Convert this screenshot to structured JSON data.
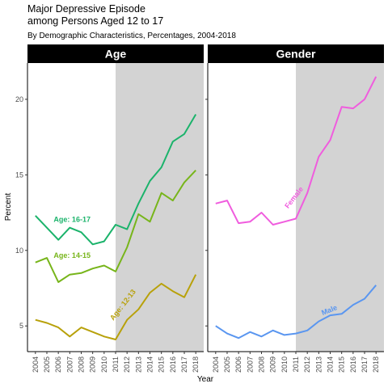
{
  "chart_data": {
    "type": "line",
    "title": "Major Depressive Episode\namong Persons Aged 12 to 17",
    "title_lines": [
      "Major Depressive Episode",
      "among Persons Aged 12 to 17"
    ],
    "subtitle": "By Demographic Characteristics, Percentages, 2004-2018",
    "xlabel": "Year",
    "ylabel": "Percent",
    "ylim": [
      3.3,
      22.4
    ],
    "y_ticks": [
      5,
      10,
      15,
      20
    ],
    "x": [
      2004,
      2005,
      2006,
      2007,
      2008,
      2009,
      2010,
      2011,
      2012,
      2013,
      2014,
      2015,
      2016,
      2017,
      2018
    ],
    "shaded_from_year": 2011,
    "shaded_color": "#d3d3d3",
    "grid": false,
    "legend": "none",
    "panels": [
      {
        "title": "Age",
        "series": [
          {
            "name": "Age: 16-17",
            "color": "#1bb36b",
            "values": [
              12.3,
              11.5,
              10.7,
              11.5,
              11.2,
              10.4,
              10.6,
              11.7,
              11.4,
              13.1,
              14.6,
              15.5,
              17.2,
              17.7,
              19.0
            ],
            "label_x": 2007.2,
            "label_y": 11.9,
            "label_angle": 0
          },
          {
            "name": "Age: 14-15",
            "color": "#77b51a",
            "values": [
              9.2,
              9.5,
              7.9,
              8.4,
              8.5,
              8.8,
              9.0,
              8.6,
              10.2,
              12.4,
              11.9,
              13.8,
              13.3,
              14.5,
              15.3
            ],
            "label_x": 2007.2,
            "label_y": 9.5,
            "label_angle": 0
          },
          {
            "name": "Age: 12-13",
            "color": "#b8a10a",
            "values": [
              5.4,
              5.2,
              4.9,
              4.3,
              4.9,
              4.6,
              4.3,
              4.1,
              5.4,
              6.1,
              7.2,
              7.8,
              7.3,
              6.9,
              8.4
            ],
            "label_x": 2011.8,
            "label_y": 6.3,
            "label_angle": -52
          }
        ]
      },
      {
        "title": "Gender",
        "series": [
          {
            "name": "Female",
            "color": "#f05cde",
            "values": [
              13.1,
              13.3,
              11.8,
              11.9,
              12.5,
              11.7,
              11.9,
              12.1,
              13.8,
              16.2,
              17.3,
              19.5,
              19.4,
              20.0,
              21.5
            ],
            "label_x": 2011.0,
            "label_y": 13.4,
            "label_angle": -52
          },
          {
            "name": "Male",
            "color": "#5a96f0",
            "values": [
              5.0,
              4.5,
              4.2,
              4.6,
              4.3,
              4.7,
              4.4,
              4.5,
              4.7,
              5.3,
              5.7,
              5.8,
              6.4,
              6.8,
              7.7
            ],
            "label_x": 2014.0,
            "label_y": 5.9,
            "label_angle": -22
          }
        ]
      }
    ]
  }
}
